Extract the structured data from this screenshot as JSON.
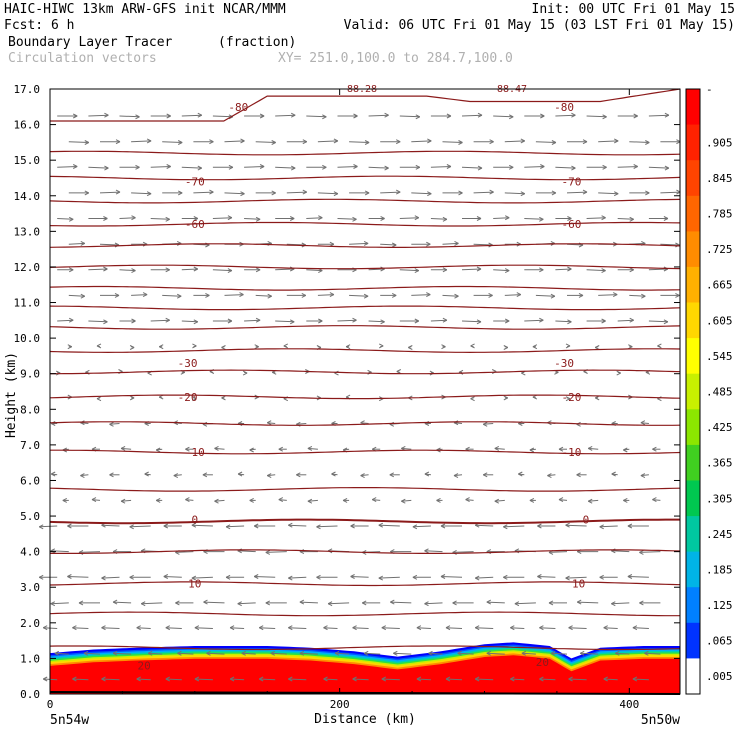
{
  "header": {
    "line1_left": "HAIC-HIWC 13km ARW-GFS init   NCAR/MMM",
    "line1_right": "Init: 00 UTC Fri 01 May 15",
    "line2_left": "Fcst:    6 h",
    "line2_right": "Valid: 06 UTC Fri 01 May 15 (03 LST Fri 01 May 15)",
    "field_name": "Boundary Layer Tracer",
    "field_units": "(fraction)",
    "vector_name": "Circulation vectors",
    "xsec": "XY= 251.0,100.0 to 284.7,100.0"
  },
  "chart_data": {
    "type": "cross-section",
    "ylabel": "Height (km)",
    "xlabel": "Distance (km)",
    "x_left_label": "5n54w",
    "x_right_label": "5n50w",
    "xlim": [
      0,
      435
    ],
    "ylim": [
      0,
      17
    ],
    "y_ticks": [
      "0.0",
      "1.0",
      "2.0",
      "3.0",
      "4.0",
      "5.0",
      "6.0",
      "7.0",
      "8.0",
      "9.0",
      "10.0",
      "11.0",
      "12.0",
      "13.0",
      "14.0",
      "15.0",
      "16.0",
      "17.0"
    ],
    "x_ticks": [
      0,
      200,
      400
    ],
    "colorbar_labels": [
      "-",
      ".905",
      ".845",
      ".785",
      ".725",
      ".665",
      ".605",
      ".545",
      ".485",
      ".425",
      ".365",
      ".305",
      ".245",
      ".185",
      ".125",
      ".065",
      ".005"
    ],
    "colorbar_colors": [
      "#ff0000",
      "#ff2200",
      "#ff4400",
      "#ff6600",
      "#ff8c00",
      "#ffb000",
      "#ffd700",
      "#ffff00",
      "#c8f000",
      "#8ce600",
      "#40d020",
      "#00c850",
      "#00c8a0",
      "#00b4e6",
      "#0080ff",
      "#0033ff",
      "#ffffff"
    ],
    "tracer_top_km": [
      [
        0,
        1.15
      ],
      [
        30,
        1.25
      ],
      [
        60,
        1.3
      ],
      [
        100,
        1.35
      ],
      [
        150,
        1.35
      ],
      [
        180,
        1.3
      ],
      [
        210,
        1.2
      ],
      [
        240,
        1.05
      ],
      [
        270,
        1.2
      ],
      [
        300,
        1.4
      ],
      [
        320,
        1.45
      ],
      [
        345,
        1.35
      ],
      [
        360,
        1.0
      ],
      [
        380,
        1.3
      ],
      [
        410,
        1.35
      ],
      [
        435,
        1.35
      ]
    ],
    "isotherms": [
      {
        "label": "-80",
        "label_positions": [
          [
            130,
            16.5
          ],
          [
            355,
            16.5
          ]
        ]
      },
      {
        "label": "-70",
        "label_positions": [
          [
            100,
            14.4
          ],
          [
            360,
            14.4
          ]
        ]
      },
      {
        "label": "-60",
        "label_positions": [
          [
            100,
            13.2
          ],
          [
            360,
            13.2
          ]
        ]
      },
      {
        "label": "-30",
        "label_positions": [
          [
            95,
            9.3
          ],
          [
            355,
            9.3
          ]
        ]
      },
      {
        "label": "-20",
        "label_positions": [
          [
            95,
            8.35
          ],
          [
            360,
            8.35
          ]
        ]
      },
      {
        "label": "-10",
        "label_positions": [
          [
            100,
            6.8
          ],
          [
            360,
            6.8
          ]
        ]
      },
      {
        "label": "0",
        "label_positions": [
          [
            100,
            4.9
          ],
          [
            370,
            4.9
          ]
        ]
      },
      {
        "label": "10",
        "label_positions": [
          [
            100,
            3.1
          ],
          [
            365,
            3.1
          ]
        ]
      },
      {
        "label": "20",
        "label_positions": [
          [
            65,
            0.8
          ],
          [
            340,
            0.9
          ]
        ]
      }
    ],
    "top_contour_labels": [
      "88.28",
      "88.47"
    ],
    "contour_levels_km": [
      16.1,
      15.2,
      14.5,
      13.85,
      13.2,
      12.6,
      12.0,
      11.4,
      10.85,
      10.3,
      9.65,
      9.05,
      8.35,
      7.6,
      6.8,
      5.75,
      4.85,
      4.0,
      3.1,
      2.25,
      1.3
    ],
    "vectors": "easterly (right-to-left) in lower and middle troposphere, westerly (left-to-right) above ~10 km"
  }
}
